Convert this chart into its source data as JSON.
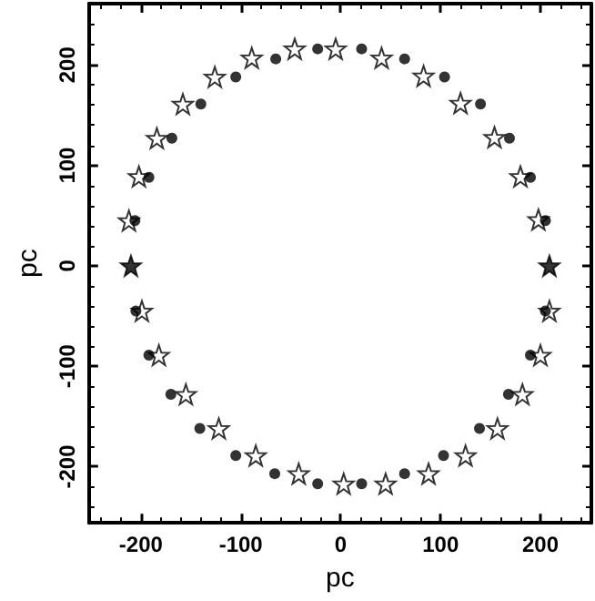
{
  "chart_data": {
    "type": "scatter",
    "xlabel": "pc",
    "ylabel": "pc",
    "xlim": [
      -252,
      251
    ],
    "ylim": [
      -256,
      261
    ],
    "xticks": [
      -200,
      -100,
      0,
      100,
      200
    ],
    "yticks": [
      -200,
      -100,
      0,
      100,
      200
    ],
    "grid": false,
    "series": [
      {
        "color": "#000000",
        "marker": "circle",
        "x": [
          -206,
          -192,
          -169,
          -140,
          -105,
          -65,
          -23,
          21,
          64,
          104,
          140,
          169,
          190,
          205,
          205,
          190,
          168,
          139,
          103,
          64,
          21,
          -23,
          -66,
          -105,
          -141,
          -170,
          -192,
          -205
        ],
        "values": [
          45,
          88,
          127,
          161,
          188,
          206,
          216,
          216,
          206,
          188,
          161,
          127,
          88,
          45,
          -45,
          -89,
          -128,
          -162,
          -189,
          -207,
          -217,
          -217,
          -207,
          -189,
          -162,
          -128,
          -89,
          -45
        ]
      },
      {
        "color": "#ffffff",
        "marker": "star",
        "x": [
          -212,
          -202,
          -184,
          -158,
          -126,
          -89,
          -46,
          -5,
          41,
          83,
          120,
          154,
          180,
          198,
          209,
          200,
          182,
          157,
          125,
          88,
          45,
          3,
          -42,
          -85,
          -122,
          -155,
          -182,
          -199
        ],
        "values": [
          45,
          89,
          127,
          161,
          188,
          207,
          216,
          216,
          207,
          189,
          162,
          128,
          89,
          46,
          -45,
          -89,
          -128,
          -162,
          -189,
          -207,
          -217,
          -217,
          -207,
          -189,
          -162,
          -128,
          -89,
          -45
        ]
      },
      {
        "color": "#000000",
        "marker": "star",
        "x": [
          -210,
          209
        ],
        "values": [
          0,
          0
        ]
      }
    ]
  }
}
